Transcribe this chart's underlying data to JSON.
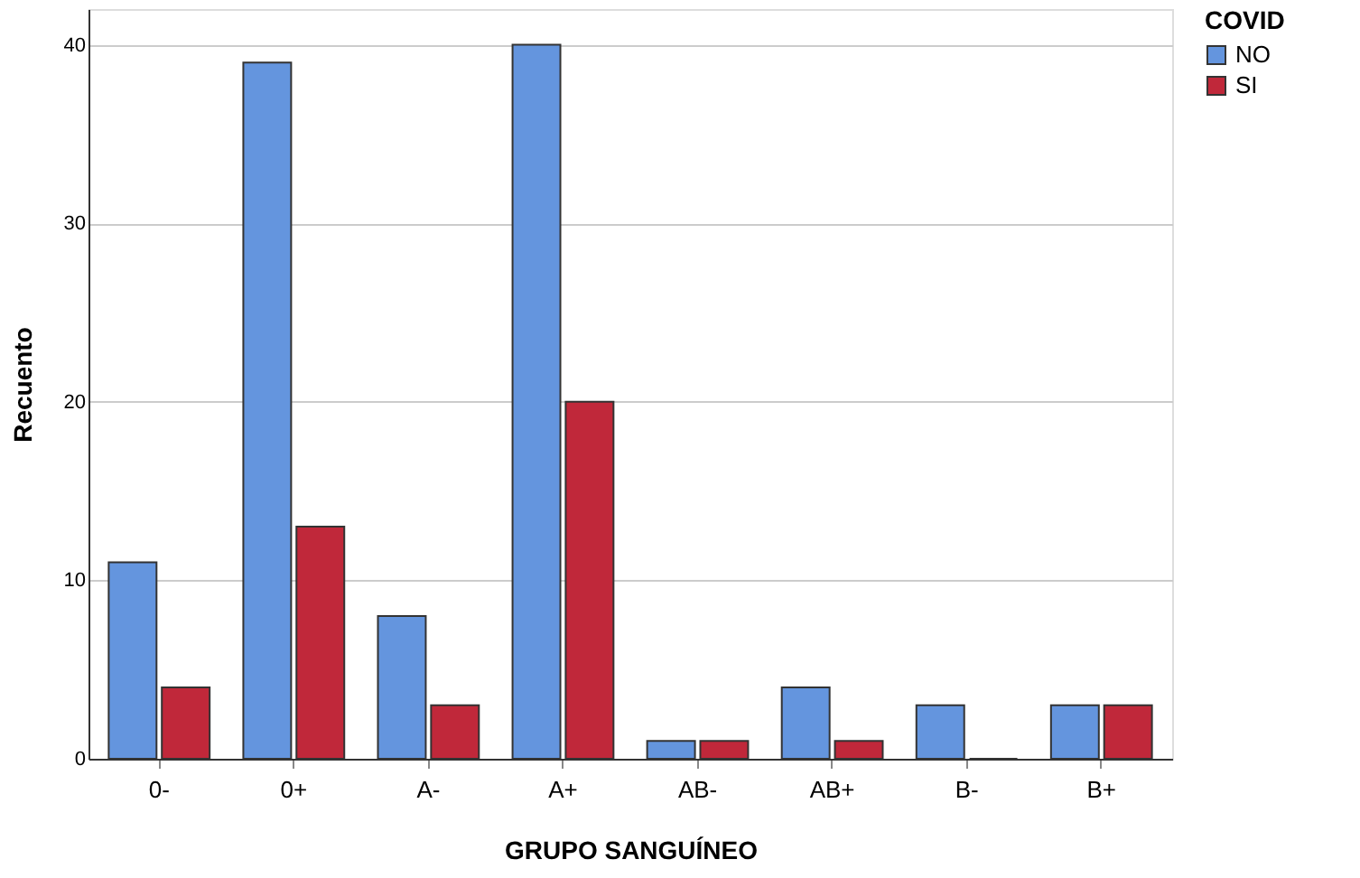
{
  "chart_data": {
    "type": "bar",
    "xlabel": "GRUPO SANGUÍNEO",
    "ylabel": "Recuento",
    "legend_title": "COVID",
    "categories": [
      "0-",
      "0+",
      "A-",
      "A+",
      "AB-",
      "AB+",
      "B-",
      "B+"
    ],
    "series": [
      {
        "name": "NO",
        "color": "#6495de",
        "values": [
          11,
          39,
          8,
          40,
          1,
          4,
          3,
          3
        ]
      },
      {
        "name": "SI",
        "color": "#c0283a",
        "values": [
          4,
          13,
          3,
          20,
          1,
          1,
          0,
          3
        ]
      }
    ],
    "ylim": [
      0,
      42
    ],
    "yticks": [
      0,
      10,
      20,
      30,
      40
    ],
    "grid": "y",
    "legend": "top right"
  }
}
